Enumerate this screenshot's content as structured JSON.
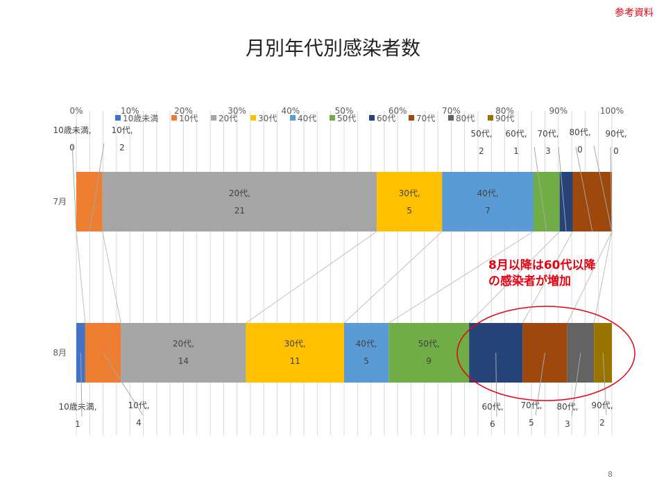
{
  "corner_label": "参考資料",
  "page_number": "8",
  "callout": {
    "line1": "8月以降は60代以降",
    "line2": "の感染者が増加"
  },
  "chart_data": {
    "type": "bar",
    "orientation": "horizontal",
    "stacked": "percent",
    "title": "月別年代別感染者数",
    "categories": [
      "7月",
      "8月"
    ],
    "xlim": [
      0,
      100
    ],
    "x_ticks": [
      "0%",
      "10%",
      "20%",
      "30%",
      "40%",
      "50%",
      "60%",
      "70%",
      "80%",
      "90%",
      "100%"
    ],
    "grid": true,
    "legend_position": "top",
    "series": [
      {
        "name": "10歳未満",
        "color": "#4472c4",
        "values": [
          0,
          1
        ]
      },
      {
        "name": "10代",
        "color": "#ed7d31",
        "values": [
          2,
          4
        ]
      },
      {
        "name": "20代",
        "color": "#a5a5a5",
        "values": [
          21,
          14
        ]
      },
      {
        "name": "30代",
        "color": "#ffc000",
        "values": [
          5,
          11
        ]
      },
      {
        "name": "40代",
        "color": "#5b9bd5",
        "values": [
          7,
          5
        ]
      },
      {
        "name": "50代",
        "color": "#70ad47",
        "values": [
          2,
          9
        ]
      },
      {
        "name": "60代",
        "color": "#264478",
        "values": [
          1,
          6
        ]
      },
      {
        "name": "70代",
        "color": "#9e480e",
        "values": [
          3,
          5
        ]
      },
      {
        "name": "80代",
        "color": "#636363",
        "values": [
          0,
          3
        ]
      },
      {
        "name": "90代",
        "color": "#997300",
        "values": [
          0,
          2
        ]
      }
    ],
    "annotations": [
      {
        "type": "ellipse",
        "color": "#e60012",
        "target": "8月 60代–90代"
      }
    ]
  }
}
